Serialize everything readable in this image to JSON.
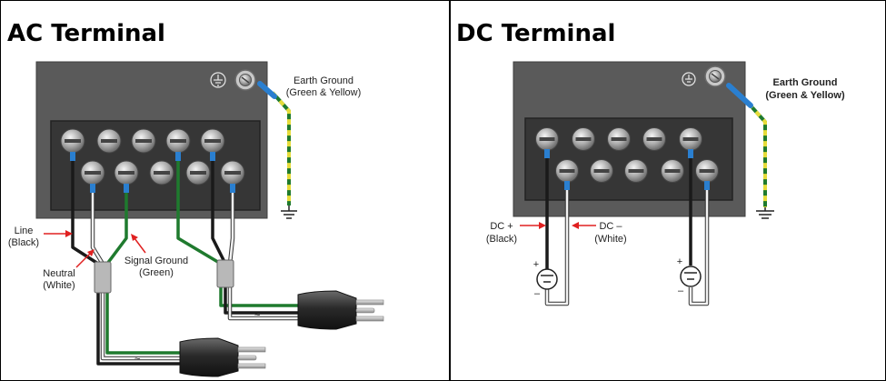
{
  "ac": {
    "title": "AC Terminal",
    "earth_label_1": "Earth Ground",
    "earth_label_2": "(Green & Yellow)",
    "line_label_1": "Line",
    "line_label_2": "(Black)",
    "neutral_label_1": "Neutral",
    "neutral_label_2": "(White)",
    "signal_label_1": "Signal Ground",
    "signal_label_2": "(Green)"
  },
  "dc": {
    "title": "DC Terminal",
    "earth_label_1": "Earth Ground",
    "earth_label_2": "(Green & Yellow)",
    "plus_label_1": "DC +",
    "plus_label_2": "(Black)",
    "minus_label_1": "DC –",
    "minus_label_2": "(White)",
    "src_plus": "+",
    "src_minus": "–"
  },
  "colors": {
    "housing": "#5a5a5a",
    "terminal_block": "#3a3a3a",
    "wire_black": "#1a1a1a",
    "wire_white": "#f2f2f2",
    "wire_green": "#1f7a2e",
    "wire_yellow": "#e6dc3a",
    "insulator_blue": "#2a7fd0",
    "arrow_red": "#e02020"
  }
}
